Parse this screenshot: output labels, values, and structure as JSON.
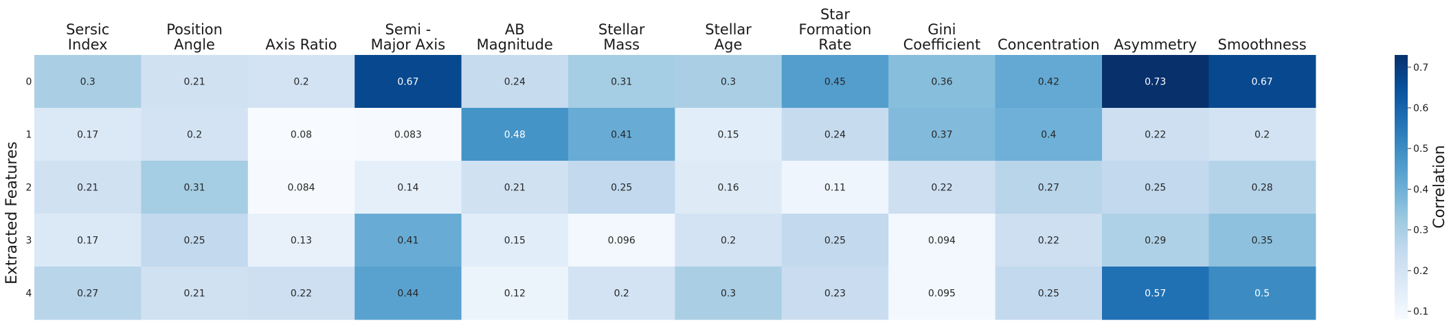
{
  "chart_data": {
    "type": "heatmap",
    "columns": [
      [
        "Sersic",
        "Index"
      ],
      [
        "Position",
        "Angle"
      ],
      [
        "Axis Ratio"
      ],
      [
        "Semi -",
        "Major Axis"
      ],
      [
        "AB",
        "Magnitude"
      ],
      [
        "Stellar",
        "Mass"
      ],
      [
        "Stellar",
        "Age"
      ],
      [
        "Star",
        "Formation",
        "Rate"
      ],
      [
        "Gini",
        "Coefficient"
      ],
      [
        "Concentration"
      ],
      [
        "Asymmetry"
      ],
      [
        "Smoothness"
      ]
    ],
    "rows": [
      "0",
      "1",
      "2",
      "3",
      "4"
    ],
    "values": [
      [
        0.3,
        0.21,
        0.2,
        0.67,
        0.24,
        0.31,
        0.3,
        0.45,
        0.36,
        0.42,
        0.73,
        0.67
      ],
      [
        0.17,
        0.2,
        0.08,
        0.083,
        0.48,
        0.41,
        0.15,
        0.24,
        0.37,
        0.4,
        0.22,
        0.2
      ],
      [
        0.21,
        0.31,
        0.084,
        0.14,
        0.21,
        0.25,
        0.16,
        0.11,
        0.22,
        0.27,
        0.25,
        0.28
      ],
      [
        0.17,
        0.25,
        0.13,
        0.41,
        0.15,
        0.096,
        0.2,
        0.25,
        0.094,
        0.22,
        0.29,
        0.35
      ],
      [
        0.27,
        0.21,
        0.22,
        0.44,
        0.12,
        0.2,
        0.3,
        0.23,
        0.095,
        0.25,
        0.57,
        0.5
      ]
    ],
    "ylabel": "Extracted Features",
    "colorbar_label": "Correlation",
    "colorbar_ticks": [
      0.1,
      0.2,
      0.3,
      0.4,
      0.5,
      0.6,
      0.7
    ],
    "vmin": 0.08,
    "vmax": 0.73,
    "colormap": "Blues",
    "annotations": true,
    "xaxis_position": "top"
  }
}
